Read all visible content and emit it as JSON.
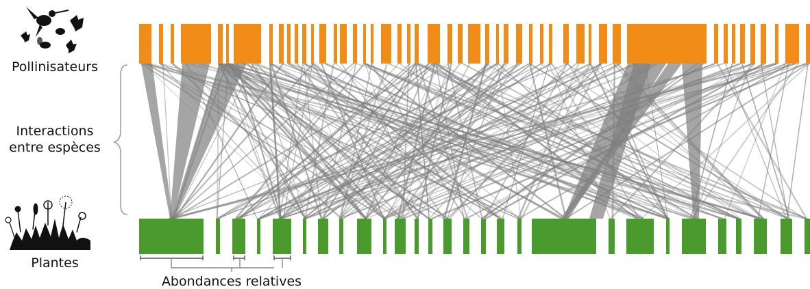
{
  "labels": {
    "pollinators": "Pollinisateurs",
    "interactions_line1": "Interactions",
    "interactions_line2": "entre espèces",
    "plants": "Plantes",
    "abundance": "Abondances relatives"
  },
  "colors": {
    "pollinator": "#F28C18",
    "plant": "#4A9A2E",
    "link": "#7f7f7f",
    "bracket": "#9a9a9a",
    "icon": "#111111"
  },
  "network": {
    "pollinator_count": 40,
    "plant_count": 26,
    "has_wide_links": true
  }
}
